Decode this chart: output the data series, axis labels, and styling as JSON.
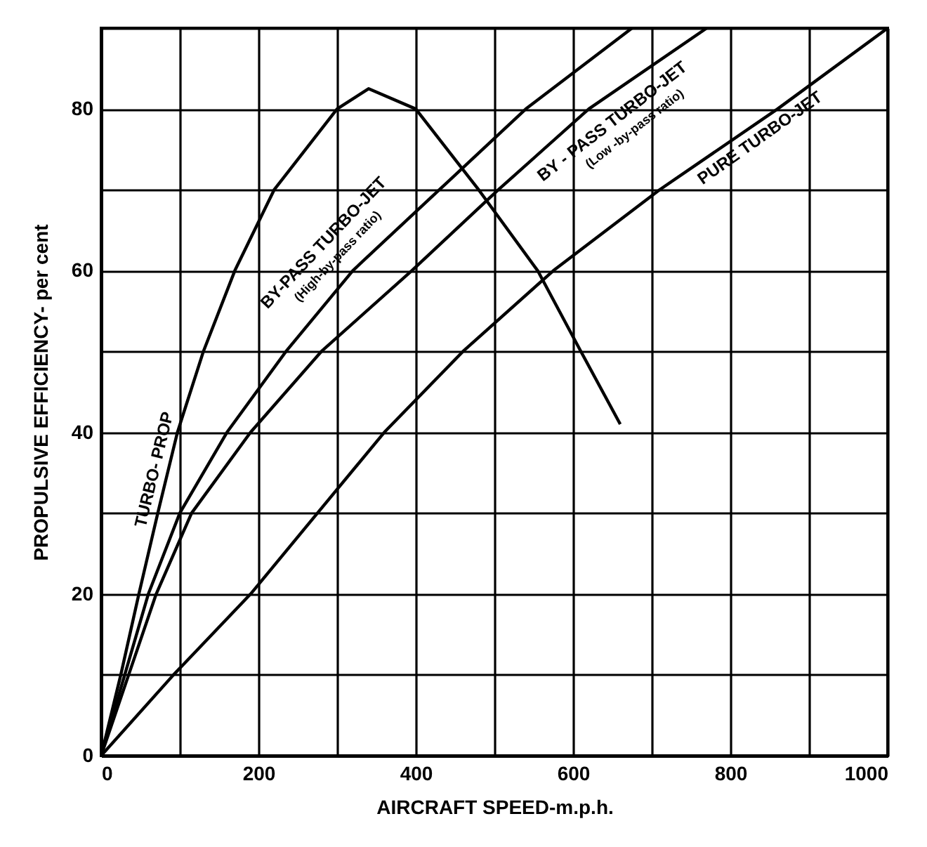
{
  "chart_data": {
    "type": "line",
    "xlabel": "AIRCRAFT SPEED-m.p.h.",
    "ylabel": "PROPULSIVE EFFICIENCY- per cent",
    "xlim": [
      0,
      1000
    ],
    "ylim": [
      0,
      90
    ],
    "xticks": [
      0,
      {
        "value": 100,
        "label": null
      },
      200,
      {
        "value": 300,
        "label": null
      },
      400,
      {
        "value": 500,
        "label": null
      },
      600,
      {
        "value": 700,
        "label": null
      },
      800,
      {
        "value": 900,
        "label": null
      },
      1000
    ],
    "yticks": [
      0,
      {
        "value": 10,
        "label": null
      },
      20,
      {
        "value": 30,
        "label": null
      },
      40,
      {
        "value": 50,
        "label": null
      },
      60,
      {
        "value": 70,
        "label": null
      },
      80,
      {
        "value": 90,
        "label": null
      }
    ],
    "grid": true,
    "line_style": "solid",
    "marker": "none",
    "series": [
      {
        "name": "TURBO- PROP",
        "color": "#000000",
        "x": [
          0,
          25,
          48,
          72,
          97,
          130,
          170,
          220,
          300,
          340,
          400,
          480,
          555,
          610,
          660
        ],
        "values": [
          0,
          10,
          20,
          30,
          40,
          50,
          60,
          70,
          80,
          82.5,
          80,
          70,
          60,
          50,
          41
        ]
      },
      {
        "name": "BY-PASS TURBO-JET",
        "color": "#000000",
        "x": [
          0,
          30,
          60,
          100,
          160,
          235,
          320,
          430,
          540,
          675
        ],
        "values": [
          0,
          10,
          20,
          30,
          40,
          50,
          60,
          70,
          80,
          90
        ]
      },
      {
        "name": "BY - PASS TURBO-JET",
        "color": "#000000",
        "x": [
          0,
          35,
          70,
          115,
          190,
          280,
          395,
          505,
          620,
          770
        ],
        "values": [
          0,
          10,
          20,
          30,
          40,
          50,
          60,
          70,
          80,
          90
        ]
      },
      {
        "name": "PURE TURBO-JET",
        "color": "#000000",
        "x": [
          0,
          92,
          190,
          275,
          360,
          460,
          575,
          710,
          860,
          1000
        ],
        "values": [
          0,
          10,
          20,
          30,
          40,
          50,
          60,
          70,
          80,
          90
        ]
      }
    ],
    "annotations": [
      "(High-by-pass ratio)",
      "(Low -by-pass ratio)"
    ]
  }
}
